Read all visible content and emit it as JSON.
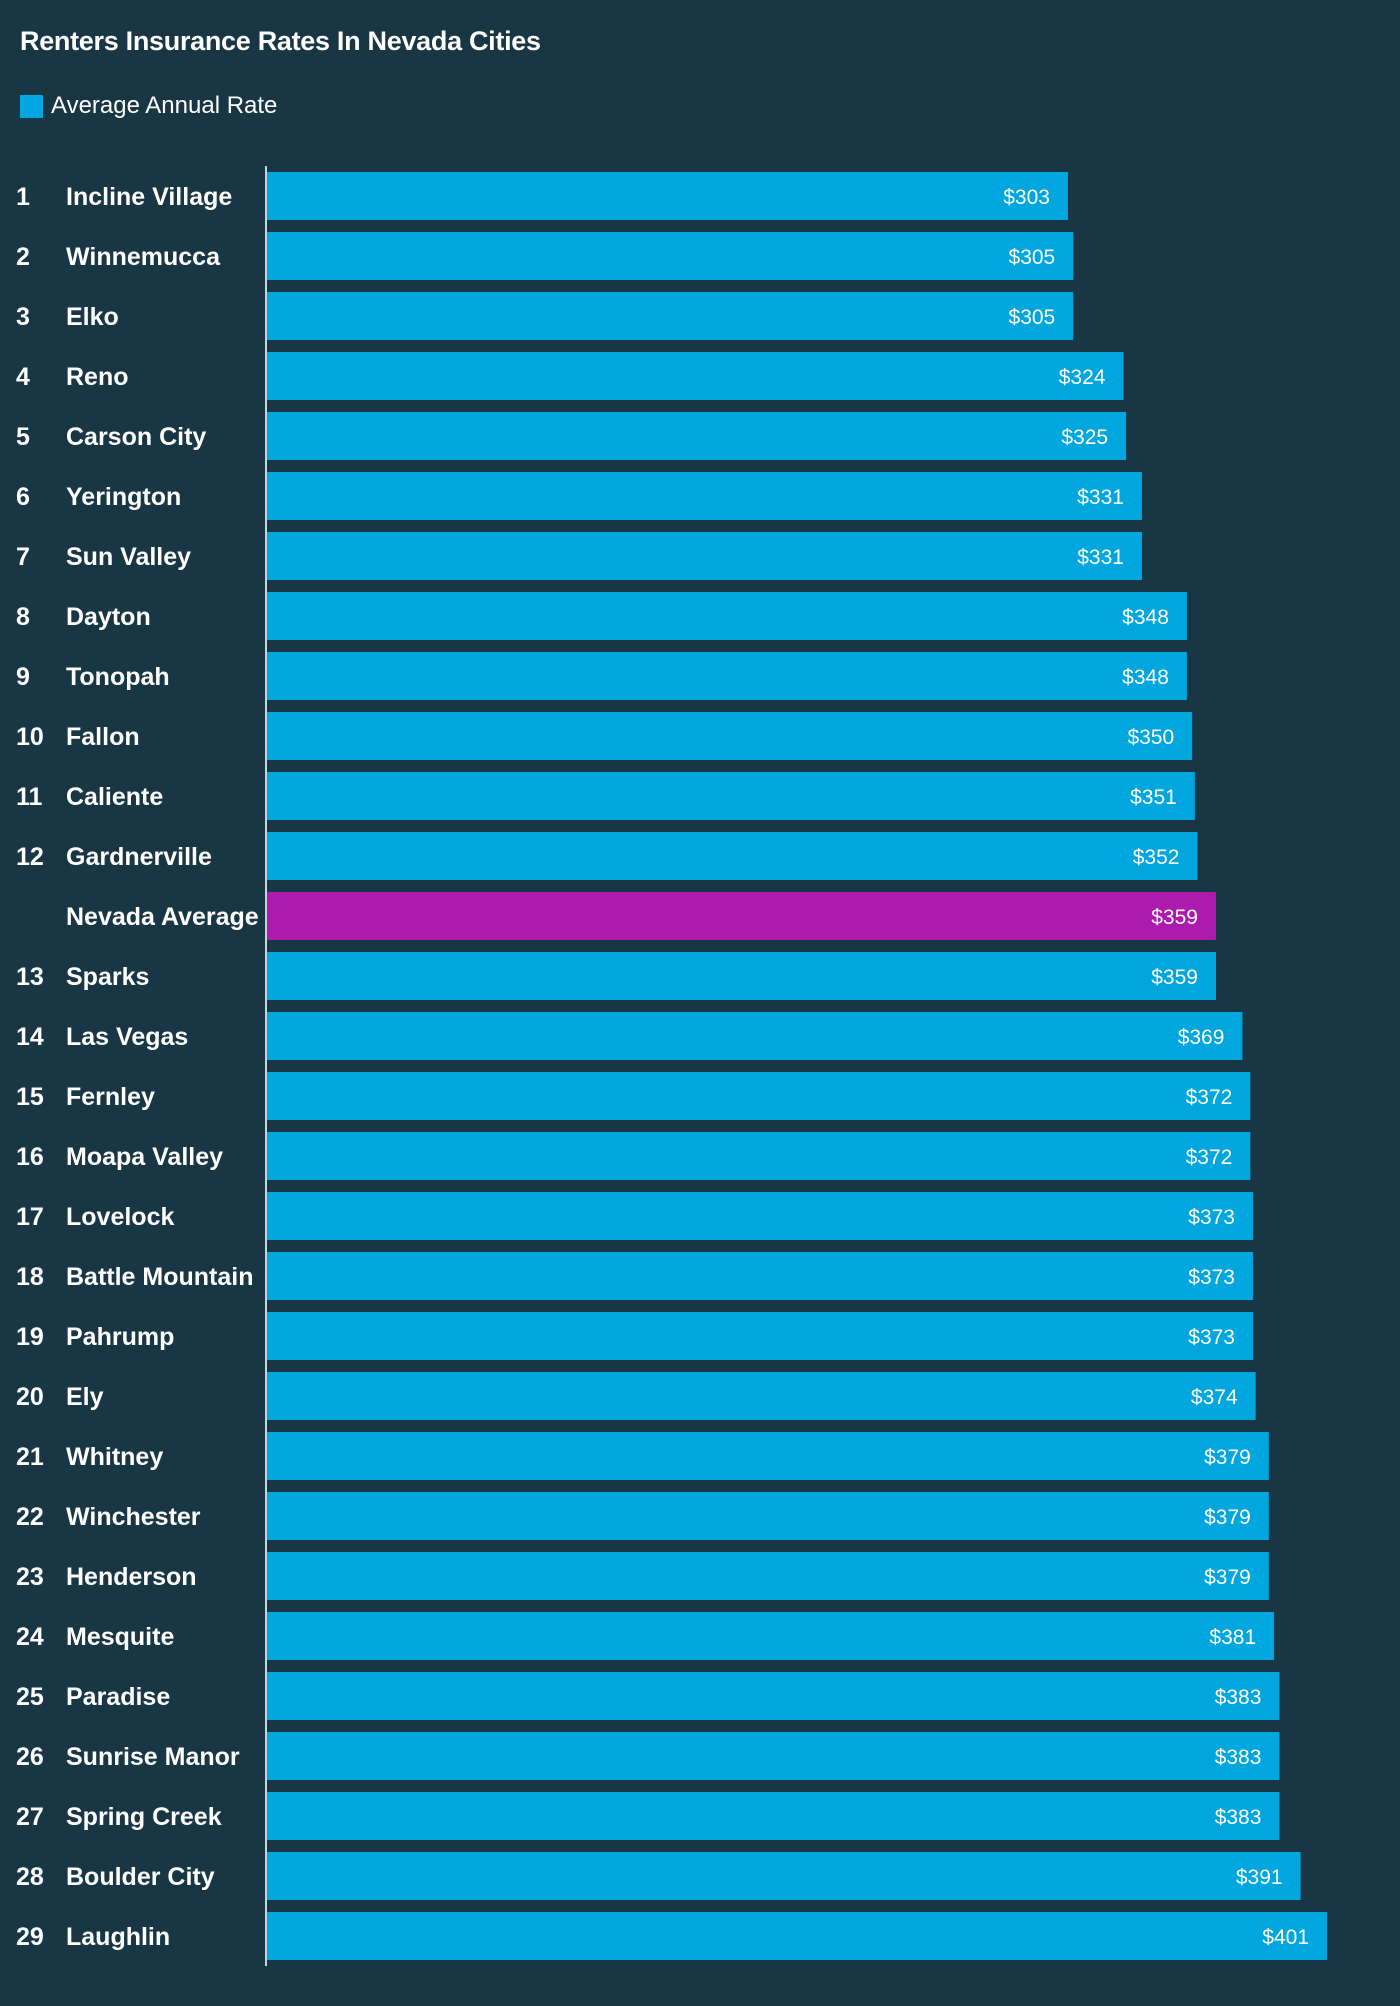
{
  "chart_data": {
    "type": "bar",
    "orientation": "horizontal",
    "title": "Renters Insurance Rates In Nevada Cities",
    "legend": [
      {
        "label": "Average Annual Rate",
        "color": "#00a6de"
      }
    ],
    "colors": {
      "bar": "#00a6de",
      "highlight": "#ac1aae",
      "background": "#183643"
    },
    "xlim": [
      0,
      401
    ],
    "bars": [
      {
        "rank": "1",
        "city": "Incline Village",
        "value": 303,
        "label": "$303",
        "highlight": false
      },
      {
        "rank": "2",
        "city": "Winnemucca",
        "value": 305,
        "label": "$305",
        "highlight": false
      },
      {
        "rank": "3",
        "city": "Elko",
        "value": 305,
        "label": "$305",
        "highlight": false
      },
      {
        "rank": "4",
        "city": "Reno",
        "value": 324,
        "label": "$324",
        "highlight": false
      },
      {
        "rank": "5",
        "city": "Carson City",
        "value": 325,
        "label": "$325",
        "highlight": false
      },
      {
        "rank": "6",
        "city": "Yerington",
        "value": 331,
        "label": "$331",
        "highlight": false
      },
      {
        "rank": "7",
        "city": "Sun Valley",
        "value": 331,
        "label": "$331",
        "highlight": false
      },
      {
        "rank": "8",
        "city": "Dayton",
        "value": 348,
        "label": "$348",
        "highlight": false
      },
      {
        "rank": "9",
        "city": "Tonopah",
        "value": 348,
        "label": "$348",
        "highlight": false
      },
      {
        "rank": "10",
        "city": "Fallon",
        "value": 350,
        "label": "$350",
        "highlight": false
      },
      {
        "rank": "11",
        "city": "Caliente",
        "value": 351,
        "label": "$351",
        "highlight": false
      },
      {
        "rank": "12",
        "city": "Gardnerville",
        "value": 352,
        "label": "$352",
        "highlight": false
      },
      {
        "rank": "",
        "city": "Nevada Average",
        "value": 359,
        "label": "$359",
        "highlight": true
      },
      {
        "rank": "13",
        "city": "Sparks",
        "value": 359,
        "label": "$359",
        "highlight": false
      },
      {
        "rank": "14",
        "city": "Las Vegas",
        "value": 369,
        "label": "$369",
        "highlight": false
      },
      {
        "rank": "15",
        "city": "Fernley",
        "value": 372,
        "label": "$372",
        "highlight": false
      },
      {
        "rank": "16",
        "city": "Moapa Valley",
        "value": 372,
        "label": "$372",
        "highlight": false
      },
      {
        "rank": "17",
        "city": "Lovelock",
        "value": 373,
        "label": "$373",
        "highlight": false
      },
      {
        "rank": "18",
        "city": "Battle Mountain",
        "value": 373,
        "label": "$373",
        "highlight": false
      },
      {
        "rank": "19",
        "city": "Pahrump",
        "value": 373,
        "label": "$373",
        "highlight": false
      },
      {
        "rank": "20",
        "city": "Ely",
        "value": 374,
        "label": "$374",
        "highlight": false
      },
      {
        "rank": "21",
        "city": "Whitney",
        "value": 379,
        "label": "$379",
        "highlight": false
      },
      {
        "rank": "22",
        "city": "Winchester",
        "value": 379,
        "label": "$379",
        "highlight": false
      },
      {
        "rank": "23",
        "city": "Henderson",
        "value": 379,
        "label": "$379",
        "highlight": false
      },
      {
        "rank": "24",
        "city": "Mesquite",
        "value": 381,
        "label": "$381",
        "highlight": false
      },
      {
        "rank": "25",
        "city": "Paradise",
        "value": 383,
        "label": "$383",
        "highlight": false
      },
      {
        "rank": "26",
        "city": "Sunrise Manor",
        "value": 383,
        "label": "$383",
        "highlight": false
      },
      {
        "rank": "27",
        "city": "Spring Creek",
        "value": 383,
        "label": "$383",
        "highlight": false
      },
      {
        "rank": "28",
        "city": "Boulder City",
        "value": 391,
        "label": "$391",
        "highlight": false
      },
      {
        "rank": "29",
        "city": "Laughlin",
        "value": 401,
        "label": "$401",
        "highlight": false
      }
    ]
  }
}
